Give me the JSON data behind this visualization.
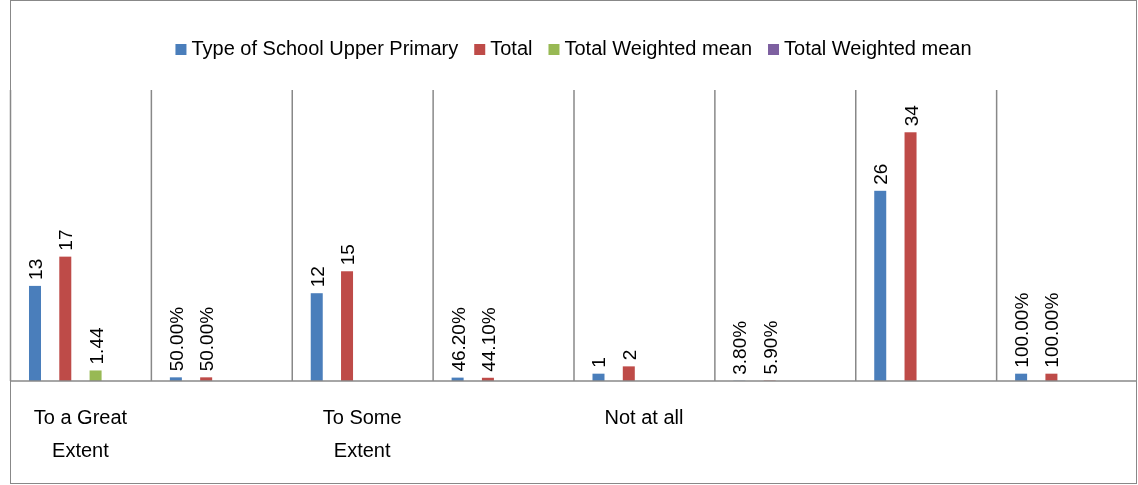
{
  "chart_data": {
    "type": "bar",
    "categories": [
      "To a Great Extent",
      null,
      "To Some Extent",
      null,
      "Not at all",
      null,
      null,
      null
    ],
    "series": [
      {
        "name": "Type of School Upper Primary",
        "color": "#4a7ebb",
        "values": [
          13,
          0.5,
          12,
          0.462,
          1,
          0.038,
          26,
          1
        ],
        "value_labels": [
          "13",
          "50.00%",
          "12",
          "46.20%",
          "1",
          "3.80%",
          "26",
          "100.00%"
        ]
      },
      {
        "name": "Total",
        "color": "#be4b48",
        "values": [
          17,
          0.5,
          15,
          0.441,
          2,
          0.059,
          34,
          1
        ],
        "value_labels": [
          "17",
          "50.00%",
          "15",
          "44.10%",
          "2",
          "5.90%",
          "34",
          "100.00%"
        ]
      },
      {
        "name": "Total Weighted mean",
        "color": "#98b954",
        "values": [
          1.44,
          null,
          null,
          null,
          null,
          null,
          null,
          null
        ],
        "value_labels": [
          "1.44",
          null,
          null,
          null,
          null,
          null,
          null,
          null
        ]
      },
      {
        "name": "Total Weighted mean",
        "color": "#7d60a0",
        "values": [
          null,
          null,
          null,
          null,
          null,
          null,
          null,
          null
        ]
      }
    ],
    "grid": "x",
    "legend": "top"
  }
}
